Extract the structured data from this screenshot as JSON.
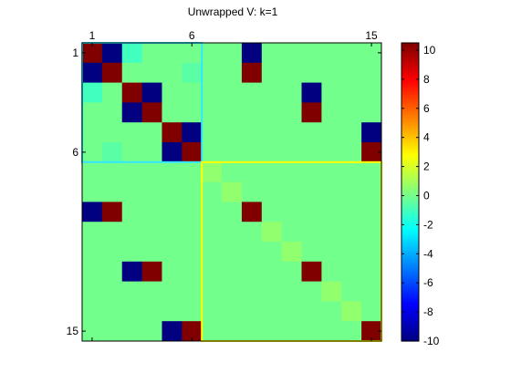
{
  "chart_data": {
    "type": "heatmap",
    "title": "Unwrapped V: k=1",
    "x_tick_labels": [
      "1",
      "6",
      "15"
    ],
    "x_ticks": [
      1,
      6,
      15
    ],
    "y_tick_labels": [
      "1",
      "6",
      "15"
    ],
    "y_ticks": [
      1,
      6,
      15
    ],
    "colormap": "jet",
    "clim": [
      -10,
      10.5
    ],
    "colorbar_ticks": [
      -10,
      -8,
      -6,
      -4,
      -2,
      0,
      2,
      4,
      6,
      8,
      10
    ],
    "colorbar_tick_labels": [
      "-10",
      "-8",
      "-6",
      "-4",
      "-2",
      "0",
      "2",
      "4",
      "6",
      "8",
      "10"
    ],
    "matrix": [
      [
        10.5,
        -10,
        -1,
        0,
        0,
        0,
        0,
        0,
        -10,
        0,
        0,
        0,
        0,
        0,
        0
      ],
      [
        -10,
        10.5,
        0,
        0,
        0,
        -0.5,
        0,
        0,
        10.5,
        0,
        0,
        0,
        0,
        0,
        0
      ],
      [
        -1,
        0,
        10.5,
        -10,
        0,
        0,
        0,
        0,
        0,
        0,
        0,
        -10,
        0,
        0,
        0
      ],
      [
        0,
        0,
        -10,
        10.5,
        0,
        0,
        0,
        0,
        0,
        0,
        0,
        10.5,
        0,
        0,
        0
      ],
      [
        0,
        0,
        0,
        0,
        10.5,
        -10,
        0,
        0,
        0,
        0,
        0,
        0,
        0,
        0,
        -10
      ],
      [
        0,
        -0.5,
        0,
        0,
        -10,
        10.5,
        0,
        0,
        0,
        0,
        0,
        0,
        0,
        0,
        10.5
      ],
      [
        0,
        0,
        0,
        0,
        0,
        0,
        0.6,
        0,
        0,
        0,
        0,
        0,
        0,
        0,
        0
      ],
      [
        0,
        0,
        0,
        0,
        0,
        0,
        0,
        0.6,
        0,
        0,
        0,
        0,
        0,
        0,
        0
      ],
      [
        -10,
        10.5,
        0,
        0,
        0,
        0,
        0,
        0,
        10.5,
        0,
        0,
        0,
        0,
        0,
        0
      ],
      [
        0,
        0,
        0,
        0,
        0,
        0,
        0,
        0,
        0,
        0.6,
        0,
        0,
        0,
        0,
        0
      ],
      [
        0,
        0,
        0,
        0,
        0,
        0,
        0,
        0,
        0,
        0,
        0.6,
        0,
        0,
        0,
        0
      ],
      [
        0,
        0,
        -10,
        10.5,
        0,
        0,
        0,
        0,
        0,
        0,
        0,
        10.5,
        0,
        0,
        0
      ],
      [
        0,
        0,
        0,
        0,
        0,
        0,
        0,
        0,
        0,
        0,
        0,
        0,
        0.6,
        0,
        0
      ],
      [
        0,
        0,
        0,
        0,
        0,
        0,
        0,
        0,
        0,
        0,
        0,
        0,
        0,
        0.6,
        0
      ],
      [
        0,
        0,
        0,
        0,
        -10,
        10.5,
        0,
        0,
        0,
        0,
        0,
        0,
        0,
        0,
        10.5
      ]
    ],
    "highlight_blocks": [
      {
        "rows": [
          1,
          6
        ],
        "cols": [
          1,
          6
        ],
        "color": "#33e6ff"
      },
      {
        "rows": [
          7,
          15
        ],
        "cols": [
          7,
          15
        ],
        "color": "#ffff00"
      }
    ]
  }
}
